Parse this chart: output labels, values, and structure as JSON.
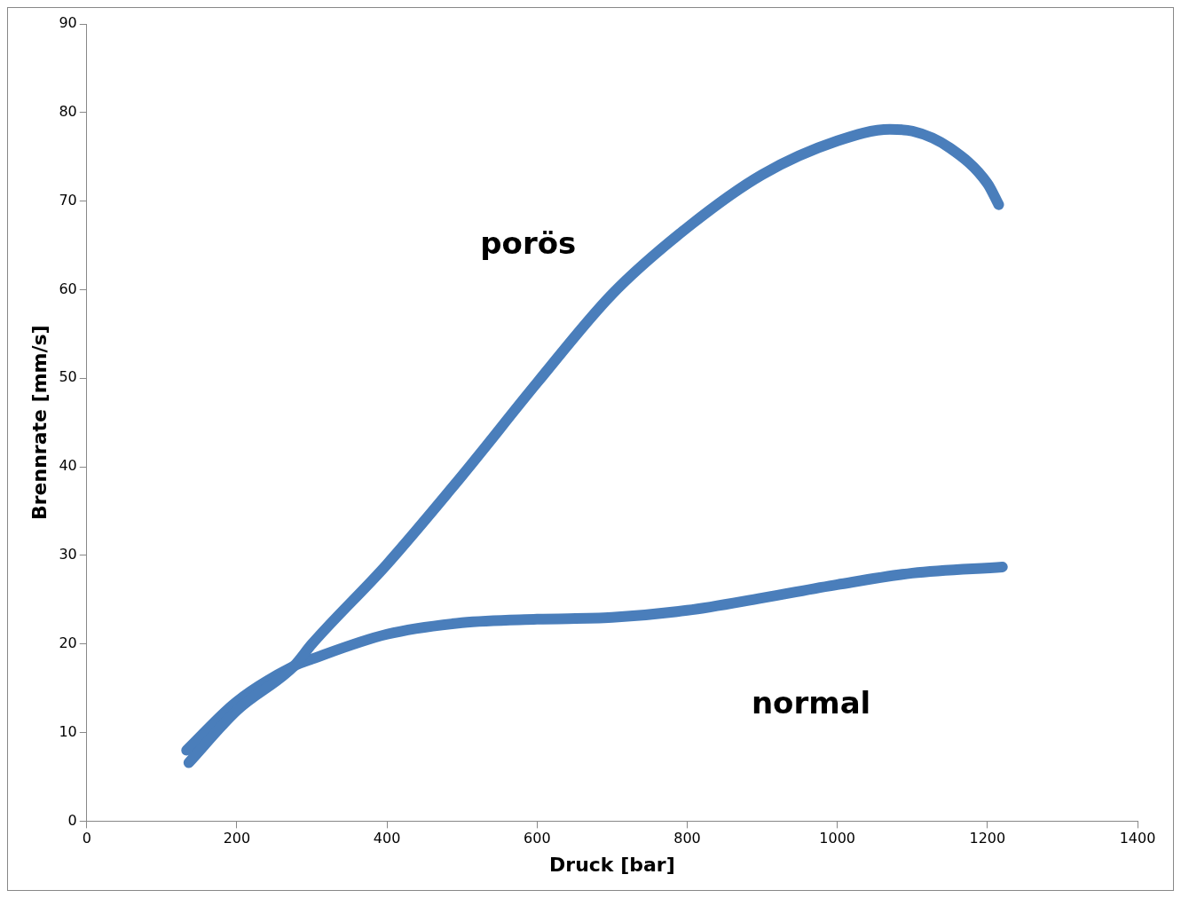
{
  "chart_data": {
    "type": "line",
    "xlabel": "Druck [bar]",
    "ylabel": "Brennrate [mm/s]",
    "xlim": [
      0,
      1400
    ],
    "xticks": [
      0,
      200,
      400,
      600,
      800,
      1000,
      1200,
      1400
    ],
    "ylim": [
      0,
      90
    ],
    "yticks": [
      0,
      10,
      20,
      30,
      40,
      50,
      60,
      70,
      80,
      90
    ],
    "grid": false,
    "legend": false,
    "marker": "none",
    "line_style": "solid",
    "series": [
      {
        "name": "porös",
        "color": "#4a7ebb",
        "x": [
          136,
          200,
          276,
          300,
          400,
          500,
          600,
          700,
          800,
          900,
          1000,
          1070,
          1100,
          1150,
          1200,
          1215
        ],
        "values": [
          6.6,
          12.5,
          17.5,
          20,
          29,
          39,
          49.5,
          59.5,
          67,
          73,
          76.8,
          78.1,
          77.9,
          76,
          72,
          69.6
        ]
      },
      {
        "name": "normal",
        "color": "#4a7ebb",
        "x": [
          133,
          200,
          276,
          300,
          400,
          500,
          600,
          700,
          800,
          900,
          1000,
          1100,
          1220
        ],
        "values": [
          8,
          13.5,
          17.5,
          18.3,
          21.1,
          22.4,
          22.8,
          23,
          23.8,
          25.2,
          26.7,
          28,
          28.7
        ]
      }
    ]
  }
}
